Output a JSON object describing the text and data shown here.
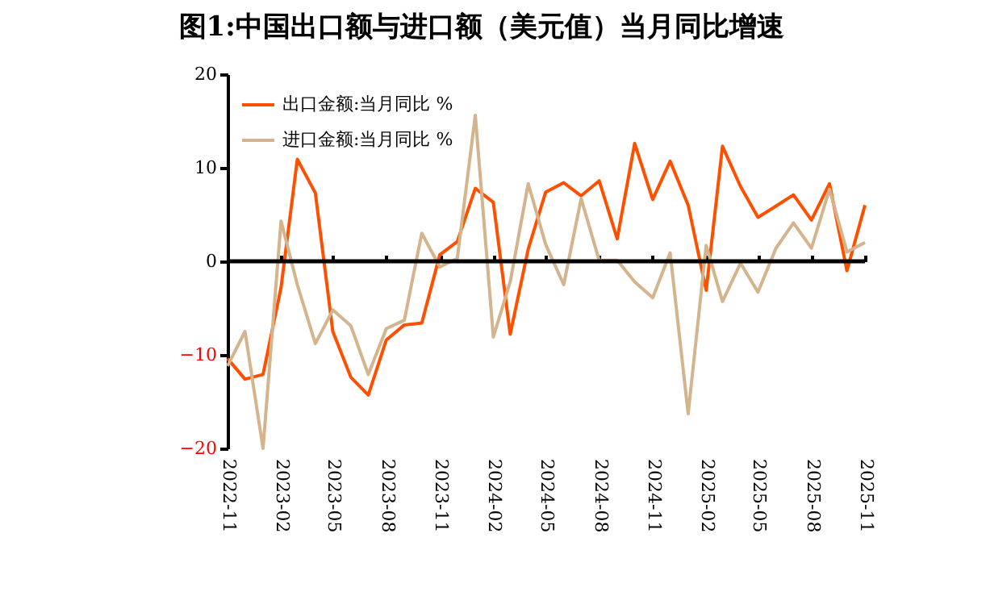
{
  "chart_data": {
    "type": "line",
    "title": "图1:中国出口额与进口额（美元值）当月同比增速",
    "x": [
      "2022-11",
      "2022-12",
      "2023-01",
      "2023-02",
      "2023-03",
      "2023-04",
      "2023-05",
      "2023-06",
      "2023-07",
      "2023-08",
      "2023-09",
      "2023-10",
      "2023-11",
      "2023-12",
      "2024-01",
      "2024-02",
      "2024-03",
      "2024-04",
      "2024-05",
      "2024-06",
      "2024-07",
      "2024-08",
      "2024-09",
      "2024-10",
      "2024-11",
      "2024-12",
      "2025-01",
      "2025-02",
      "2025-03",
      "2025-04",
      "2025-05",
      "2025-06",
      "2025-07",
      "2025-08",
      "2025-09",
      "2025-10",
      "2025-11"
    ],
    "series": [
      {
        "name": "出口金额:当月同比 %",
        "color": "#ff5000",
        "values": [
          -10.4,
          -12.6,
          -12.1,
          -2.8,
          10.9,
          7.3,
          -7.5,
          -12.4,
          -14.3,
          -8.4,
          -6.8,
          -6.6,
          0.7,
          2.1,
          7.8,
          6.3,
          -7.8,
          1.3,
          7.4,
          8.4,
          7.0,
          8.6,
          2.4,
          12.6,
          6.6,
          10.7,
          6.0,
          -3.1,
          12.3,
          8.0,
          4.7,
          5.9,
          7.1,
          4.4,
          8.3,
          -1.0,
          6.0
        ]
      },
      {
        "name": "进口金额:当月同比 %",
        "color": "#d4b48c",
        "values": [
          -11.2,
          -7.5,
          -20.0,
          4.3,
          -2.5,
          -8.8,
          -5.2,
          -6.9,
          -12.1,
          -7.2,
          -6.3,
          3.0,
          -0.6,
          0.3,
          15.6,
          -8.1,
          -2.2,
          8.3,
          1.8,
          -2.5,
          6.7,
          0.1,
          0.1,
          -2.2,
          -3.9,
          0.9,
          -16.3,
          1.7,
          -4.3,
          -0.2,
          -3.3,
          1.4,
          4.1,
          1.4,
          7.7,
          1.0,
          2.0
        ]
      }
    ],
    "xlim": [
      "2022-11",
      "2025-11"
    ],
    "xticks": [
      "2022-11",
      "2023-02",
      "2023-05",
      "2023-08",
      "2023-11",
      "2024-02",
      "2024-05",
      "2024-08",
      "2024-11",
      "2025-02",
      "2025-05",
      "2025-08",
      "2025-11"
    ],
    "ylim": [
      -20,
      20
    ],
    "yticks": [
      -20,
      -10,
      0,
      10,
      20
    ],
    "ref_lines": [
      {
        "axis": "y",
        "value": 0,
        "color": "#000000",
        "line_style": "solid"
      }
    ],
    "grid": false,
    "legend": "top left",
    "marker": "none",
    "line_style": "solid"
  }
}
